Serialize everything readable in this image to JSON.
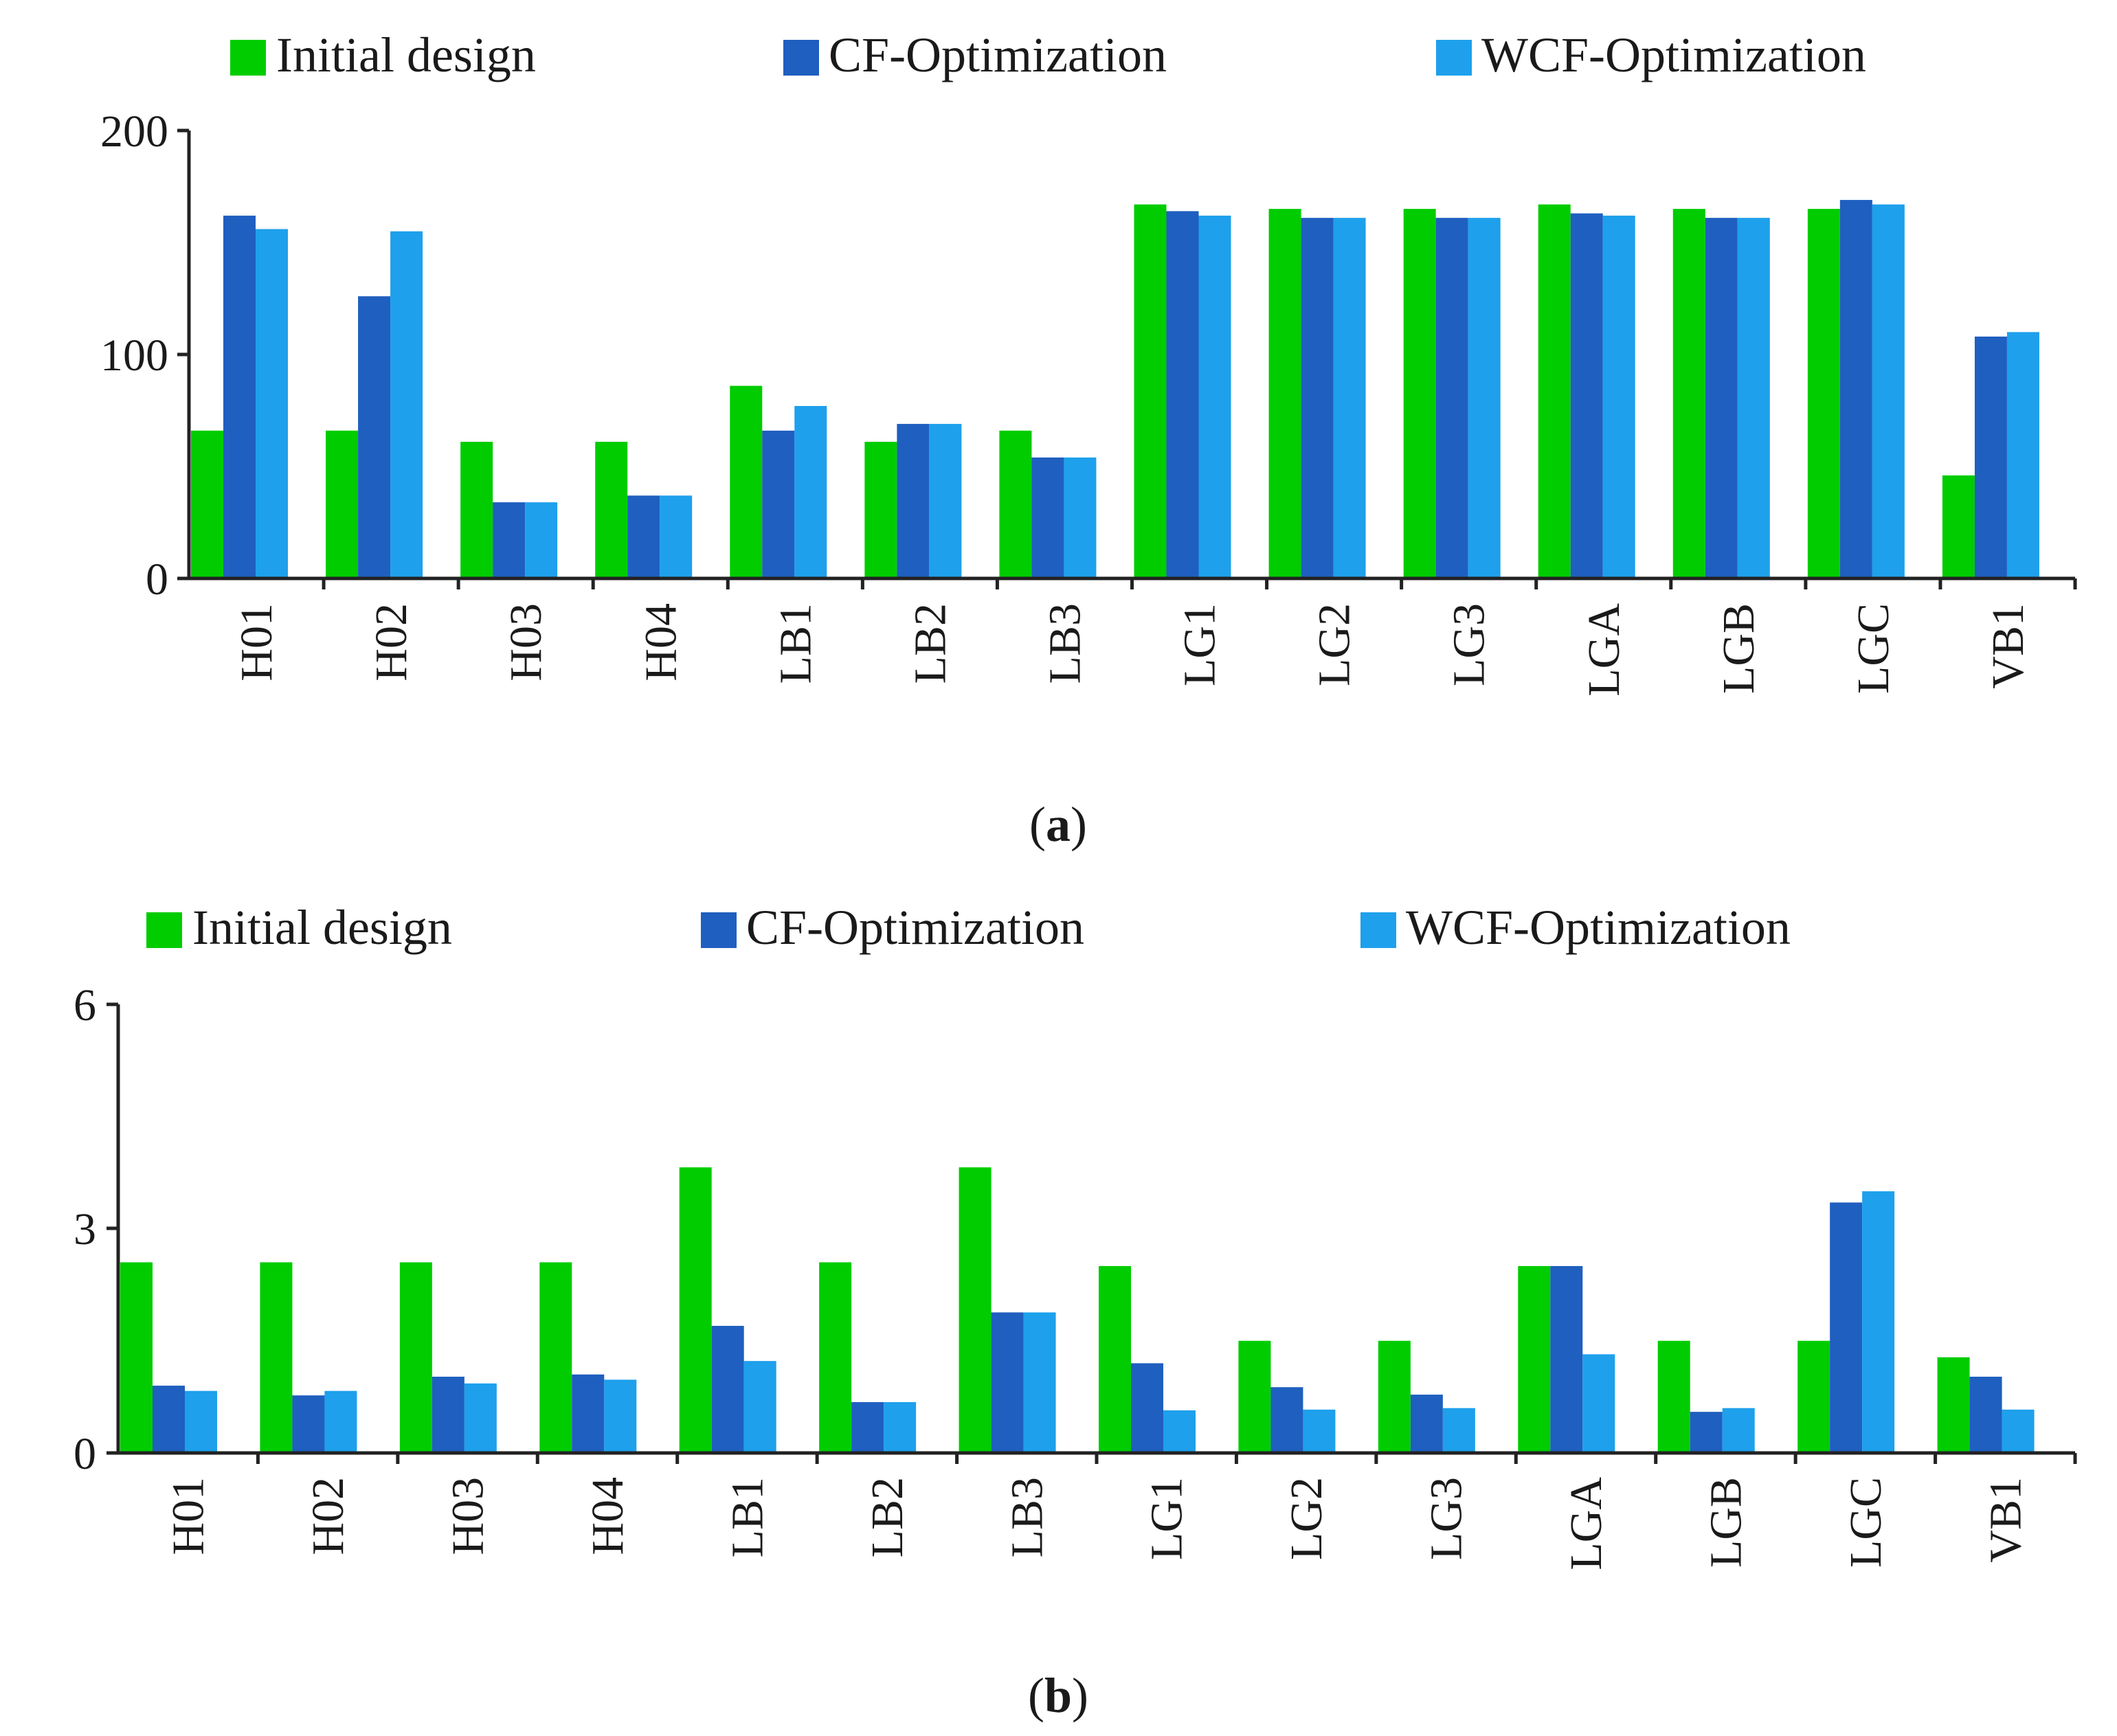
{
  "colors": {
    "initial": "#00CC00",
    "cf": "#1F5FBF",
    "wcf": "#1EA0EC",
    "axis": "#222222",
    "text": "#1a1a1a"
  },
  "chart_data": [
    {
      "type": "bar",
      "caption_open": "(",
      "caption_letter": "a",
      "caption_close": ")",
      "categories": [
        "H01",
        "H02",
        "H03",
        "H04",
        "LB1",
        "LB2",
        "LB3",
        "LG1",
        "LG2",
        "LG3",
        "LGA",
        "LGB",
        "LGC",
        "VB1"
      ],
      "series": [
        {
          "name": "Initial design",
          "values": [
            66,
            66,
            61,
            61,
            86,
            61,
            66,
            167,
            165,
            165,
            167,
            165,
            165,
            46
          ]
        },
        {
          "name": "CF-Optimization",
          "values": [
            162,
            126,
            34,
            37,
            66,
            69,
            54,
            164,
            161,
            161,
            163,
            161,
            169,
            108
          ]
        },
        {
          "name": "WCF-Optimization",
          "values": [
            156,
            155,
            34,
            37,
            77,
            69,
            54,
            162,
            161,
            161,
            162,
            161,
            167,
            110
          ]
        }
      ],
      "yticks": [
        "0",
        "100",
        "200"
      ],
      "ylim": [
        0,
        200
      ],
      "legend": "top"
    },
    {
      "type": "bar",
      "caption_open": "(",
      "caption_letter": "b",
      "caption_close": ")",
      "categories": [
        "H01",
        "H02",
        "H03",
        "H04",
        "LB1",
        "LB2",
        "LB3",
        "LG1",
        "LG2",
        "LG3",
        "LGA",
        "LGB",
        "LGC",
        "VB1"
      ],
      "series": [
        {
          "name": "Initial design",
          "values": [
            2.55,
            2.55,
            2.55,
            2.55,
            3.82,
            2.55,
            3.82,
            2.5,
            1.5,
            1.5,
            2.5,
            1.5,
            1.5,
            1.28
          ]
        },
        {
          "name": "CF-Optimization",
          "values": [
            0.9,
            0.77,
            1.02,
            1.05,
            1.7,
            0.68,
            1.88,
            1.2,
            0.88,
            0.78,
            2.5,
            0.55,
            3.35,
            1.02
          ]
        },
        {
          "name": "WCF-Optimization",
          "values": [
            0.83,
            0.83,
            0.93,
            0.98,
            1.23,
            0.68,
            1.88,
            0.57,
            0.58,
            0.6,
            1.32,
            0.6,
            3.5,
            0.58
          ]
        }
      ],
      "yticks": [
        "0",
        "3",
        "6"
      ],
      "ylim": [
        0,
        6
      ],
      "legend": "top"
    }
  ]
}
